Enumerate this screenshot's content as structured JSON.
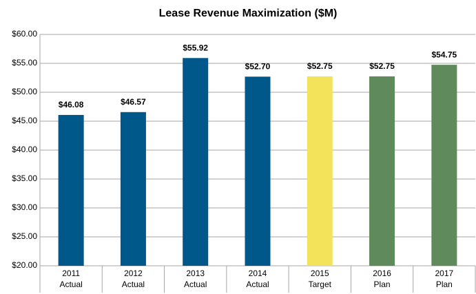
{
  "chart_data": {
    "type": "bar",
    "title": "Lease Revenue Maximization  ($M)",
    "categories": [
      [
        "2011",
        "Actual"
      ],
      [
        "2012",
        "Actual"
      ],
      [
        "2013",
        "Actual"
      ],
      [
        "2014",
        "Actual"
      ],
      [
        "2015",
        "Target"
      ],
      [
        "2016",
        "Plan"
      ],
      [
        "2017",
        "Plan"
      ]
    ],
    "values": [
      46.08,
      46.57,
      55.92,
      52.7,
      52.75,
      52.75,
      54.75
    ],
    "value_labels": [
      "$46.08",
      "$46.57",
      "$55.92",
      "$52.70",
      "$52.75",
      "$52.75",
      "$54.75"
    ],
    "colors": [
      "#00578a",
      "#00578a",
      "#00578a",
      "#00578a",
      "#f3e35a",
      "#5f8b5c",
      "#5f8b5c"
    ],
    "ylim": [
      20,
      60
    ],
    "yticks": [
      {
        "value": 20,
        "label": "$20.00"
      },
      {
        "value": 25,
        "label": "$25.00"
      },
      {
        "value": 30,
        "label": "$30.00"
      },
      {
        "value": 35,
        "label": "$35.00"
      },
      {
        "value": 40,
        "label": "$40.00"
      },
      {
        "value": 45,
        "label": "$45.00"
      },
      {
        "value": 50,
        "label": "$50.00"
      },
      {
        "value": 55,
        "label": "$55.00"
      },
      {
        "value": 60,
        "label": "$60.00"
      }
    ],
    "grid": true
  }
}
